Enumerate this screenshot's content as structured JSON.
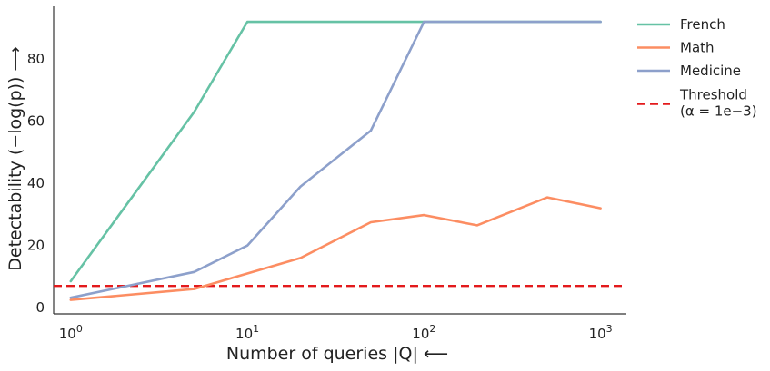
{
  "chart_data": {
    "type": "line",
    "title": "",
    "xlabel": "Number of queries |Q| ⟵",
    "ylabel": "Detectability (−log(p)) ⟶",
    "xscale": "log",
    "xlim": [
      0.8,
      1400
    ],
    "ylim": [
      -2,
      97
    ],
    "x_ticks": [
      {
        "value": 1,
        "base": "10",
        "exp": "0"
      },
      {
        "value": 10,
        "base": "10",
        "exp": "1"
      },
      {
        "value": 100,
        "base": "10",
        "exp": "2"
      },
      {
        "value": 1000,
        "base": "10",
        "exp": "3"
      }
    ],
    "y_ticks": [
      0,
      20,
      40,
      60,
      80
    ],
    "grid": false,
    "legend_position": "outside-right",
    "series": [
      {
        "name": "French",
        "color": "#66c2a5",
        "dashed": false,
        "points": [
          [
            1,
            8.5
          ],
          [
            5,
            63
          ],
          [
            10,
            92
          ],
          [
            20,
            92
          ],
          [
            50,
            92
          ],
          [
            100,
            92
          ],
          [
            200,
            92
          ],
          [
            500,
            92
          ],
          [
            1000,
            92
          ]
        ]
      },
      {
        "name": "Math",
        "color": "#fc8d62",
        "dashed": false,
        "points": [
          [
            1,
            2.5
          ],
          [
            5,
            6
          ],
          [
            10,
            11
          ],
          [
            20,
            16
          ],
          [
            50,
            27.5
          ],
          [
            100,
            29.8
          ],
          [
            200,
            26.5
          ],
          [
            500,
            35.5
          ],
          [
            1000,
            32
          ]
        ]
      },
      {
        "name": "Medicine",
        "color": "#8da0cb",
        "dashed": false,
        "points": [
          [
            1,
            3.2
          ],
          [
            5,
            11.5
          ],
          [
            10,
            20
          ],
          [
            20,
            39
          ],
          [
            50,
            57
          ],
          [
            100,
            92
          ],
          [
            200,
            92
          ],
          [
            500,
            92
          ],
          [
            1000,
            92
          ]
        ]
      }
    ],
    "threshold": {
      "value": 7,
      "color": "#e31a1c",
      "label_line1": "Threshold",
      "label_line2": "(α = 1e−3)"
    }
  }
}
